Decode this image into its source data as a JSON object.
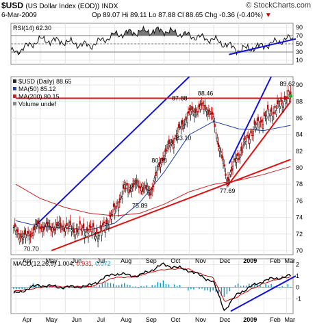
{
  "header": {
    "symbol": "$USD",
    "name": "(US Dollar Index (EOD))",
    "exchange": "INDX",
    "logo": "© StockCharts.com",
    "date": "6-Mar-2009",
    "open": "Op 89.07",
    "high": "Hi 89.11",
    "low": "Lo 87.88",
    "close": "Cl 88.65",
    "change": "Chg -0.36 (-0.40%)",
    "change_arrow": "▼"
  },
  "rsi_label": "RSI(14) 62.30",
  "price_legend": {
    "main": "$USD (Daily) 88.65",
    "ma50": "MA(50) 85.12",
    "ma200": "MA(200) 80.15",
    "volume": "Volume undef"
  },
  "macd_label": {
    "prefix": "MACD(12,26,9)",
    "macd": "1.004,",
    "signal": "0.931,",
    "hist": "0.072"
  },
  "colors": {
    "macd_signal": "#cc0000",
    "macd_hist": "#0099cc",
    "ma50": "#1f3fa8",
    "ma200": "#cc2222",
    "trendline_blue": "#1010e0",
    "trendline_red": "#e01010"
  },
  "chart_data": [
    {
      "type": "line",
      "panel": "RSI",
      "title": "RSI(14) 62.30",
      "ylim": [
        0,
        100
      ],
      "yticks": [
        10,
        30,
        50,
        70,
        90
      ],
      "reference_lines": [
        30,
        50,
        70
      ],
      "x": [
        "2008-04",
        "2008-05",
        "2008-06",
        "2008-07",
        "2008-08",
        "2008-09",
        "2008-10",
        "2008-11",
        "2008-12",
        "2009-01",
        "2009-02",
        "2009-03"
      ],
      "values": [
        30,
        60,
        55,
        45,
        72,
        80,
        82,
        70,
        60,
        35,
        45,
        62
      ],
      "annotations": [
        "blue support trendline from Dec 2008 to Mar 2009"
      ]
    },
    {
      "type": "candlestick",
      "panel": "price",
      "title": "$USD (Daily) 88.65",
      "ylim": [
        69.5,
        91
      ],
      "yticks": [
        70,
        72,
        74,
        76,
        78,
        80,
        82,
        84,
        86,
        88,
        90
      ],
      "x": [
        "2008-04-01",
        "2008-04-15",
        "2008-05-01",
        "2008-05-15",
        "2008-06-01",
        "2008-06-15",
        "2008-07-01",
        "2008-07-15",
        "2008-08-01",
        "2008-08-15",
        "2008-09-01",
        "2008-09-15",
        "2008-10-01",
        "2008-10-15",
        "2008-11-01",
        "2008-11-21",
        "2008-12-01",
        "2008-12-10",
        "2008-12-18",
        "2009-01-01",
        "2009-01-15",
        "2009-02-01",
        "2009-02-15",
        "2009-03-01",
        "2009-03-06"
      ],
      "values": [
        72.5,
        71.5,
        73.0,
        72.8,
        73.0,
        72.5,
        72.5,
        72.0,
        74.5,
        77.5,
        78.0,
        77.0,
        81.5,
        83.5,
        86.5,
        87.5,
        86.0,
        82.0,
        78.5,
        81.5,
        84.0,
        86.0,
        87.0,
        88.5,
        88.65
      ],
      "series": [
        {
          "name": "MA(50) 85.12",
          "x": [
            "2008-04-01",
            "2008-05-01",
            "2008-06-01",
            "2008-07-01",
            "2008-08-01",
            "2008-09-01",
            "2008-10-01",
            "2008-11-01",
            "2008-12-01",
            "2009-01-01",
            "2009-02-01",
            "2009-03-06"
          ],
          "values": [
            73.6,
            72.9,
            72.7,
            72.5,
            73.3,
            75.8,
            79.5,
            84.0,
            85.6,
            84.7,
            84.5,
            85.12
          ]
        },
        {
          "name": "MA(200) 80.15",
          "x": [
            "2008-04-01",
            "2008-05-01",
            "2008-06-01",
            "2008-07-01",
            "2008-08-01",
            "2008-09-01",
            "2008-10-01",
            "2008-11-01",
            "2008-12-01",
            "2009-01-01",
            "2009-02-01",
            "2009-03-06"
          ],
          "values": [
            78.0,
            76.3,
            75.2,
            74.5,
            74.2,
            74.5,
            75.6,
            77.1,
            78.0,
            78.5,
            79.2,
            80.15
          ]
        }
      ],
      "labels": [
        {
          "text": "70.70",
          "x": "2008-04-20",
          "y": 70.7
        },
        {
          "text": "80.38",
          "x": "2008-09-25",
          "y": 80.38
        },
        {
          "text": "75.89",
          "x": "2008-09-01",
          "y": 75.89
        },
        {
          "text": "83.10",
          "x": "2008-10-25",
          "y": 83.1
        },
        {
          "text": "87.88",
          "x": "2008-10-20",
          "y": 87.88
        },
        {
          "text": "88.46",
          "x": "2008-11-21",
          "y": 88.46
        },
        {
          "text": "77.69",
          "x": "2008-12-18",
          "y": 77.69
        },
        {
          "text": "89.62",
          "x": "2009-03-02",
          "y": 89.62
        }
      ],
      "trendlines": [
        {
          "color": "blue",
          "from": {
            "x": "2008-04-25",
            "y": 73.0
          },
          "to": {
            "x": "2008-11-01",
            "y": 91.0
          }
        },
        {
          "color": "blue",
          "from": {
            "x": "2008-12-20",
            "y": 80.5
          },
          "to": {
            "x": "2009-02-10",
            "y": 91.0
          }
        },
        {
          "color": "red",
          "from": {
            "x": "2008-05-15",
            "y": 70.0
          },
          "to": {
            "x": "2009-03-06",
            "y": 81.0
          }
        },
        {
          "color": "red",
          "from": {
            "x": "2008-12-18",
            "y": 77.8
          },
          "to": {
            "x": "2009-03-06",
            "y": 88.0
          }
        },
        {
          "color": "red",
          "from": {
            "x": "2008-04-01",
            "y": 88.4
          },
          "to": {
            "x": "2009-03-06",
            "y": 88.4
          }
        }
      ]
    },
    {
      "type": "line",
      "panel": "MACD",
      "title": "MACD(12,26,9) 1.004, 0.931, 0.072",
      "ylim": [
        -2.3,
        2.5
      ],
      "yticks": [
        -1,
        0,
        1,
        2
      ],
      "x": [
        "2008-04-01",
        "2008-05-01",
        "2008-06-01",
        "2008-07-01",
        "2008-08-01",
        "2008-09-01",
        "2008-10-01",
        "2008-11-01",
        "2008-12-01",
        "2008-12-15",
        "2009-01-01",
        "2009-02-01",
        "2009-03-06"
      ],
      "series": [
        {
          "name": "MACD",
          "values": [
            -0.6,
            0.2,
            0.0,
            0.1,
            1.2,
            1.0,
            2.0,
            1.5,
            0.5,
            -2.0,
            -0.5,
            0.6,
            1.004
          ]
        },
        {
          "name": "Signal",
          "values": [
            -0.4,
            0.0,
            0.1,
            0.0,
            0.8,
            1.0,
            1.6,
            1.6,
            0.8,
            -1.2,
            -0.8,
            0.4,
            0.931
          ]
        }
      ]
    }
  ],
  "x_axis_labels": [
    "Apr",
    "May",
    "Jun",
    "Jul",
    "Aug",
    "Sep",
    "Oct",
    "Nov",
    "Dec",
    "2009",
    "Feb",
    "Mar"
  ]
}
